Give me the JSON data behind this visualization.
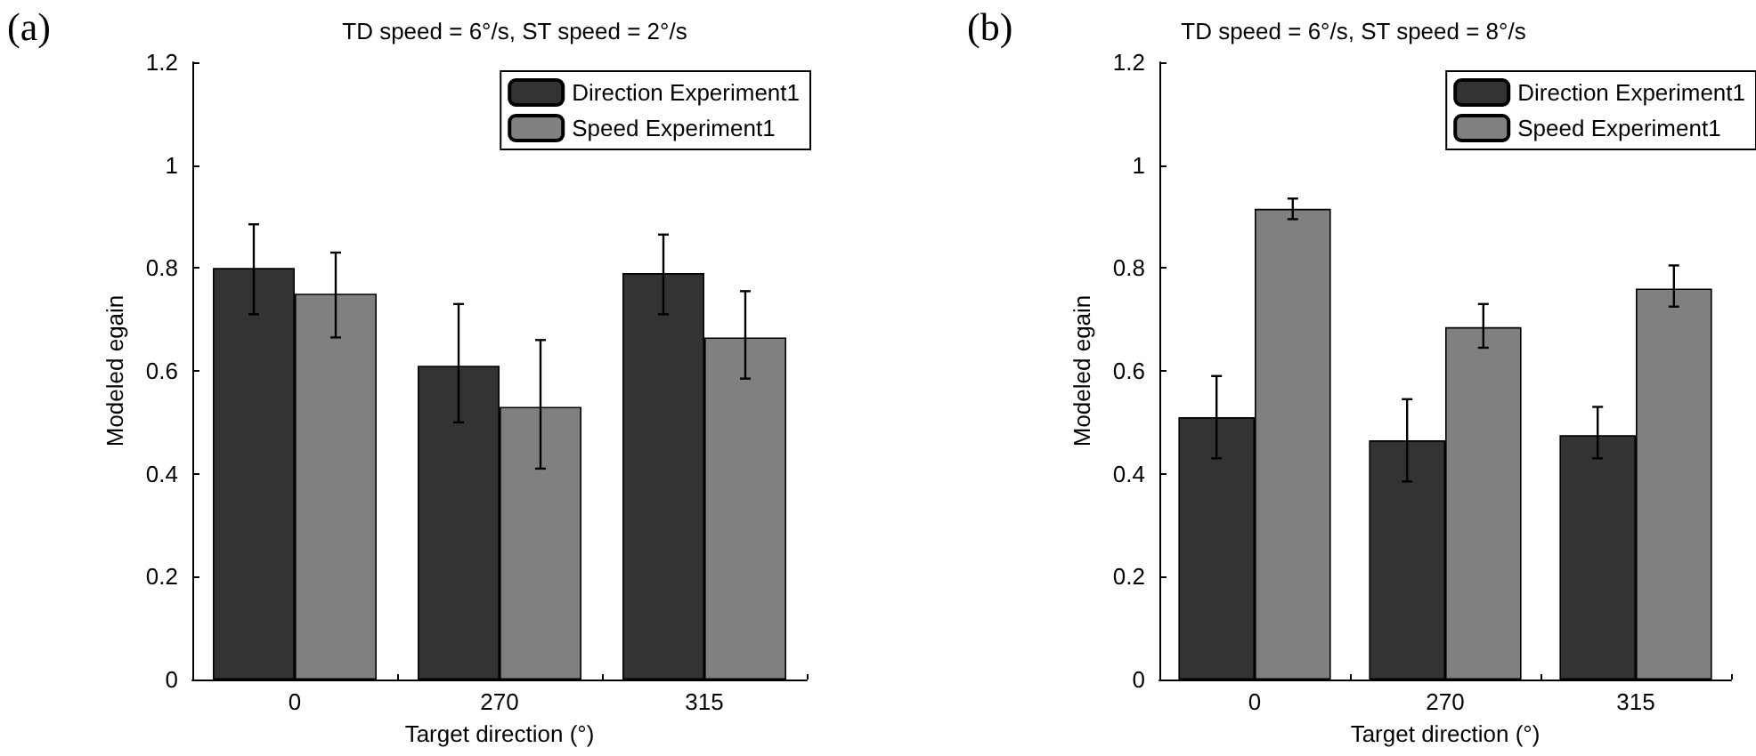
{
  "chart_data": [
    {
      "type": "bar",
      "title": "TD speed = 6°/s, ST speed = 2°/s",
      "annotations": [
        "(a)"
      ],
      "xlabel": "Target direction (°)",
      "ylabel": "Modeled egain",
      "categories": [
        "0",
        "270",
        "315"
      ],
      "ylim": [
        0,
        1.2
      ],
      "yticks": [
        0,
        0.2,
        0.4,
        0.6,
        0.8,
        1,
        1.2
      ],
      "grid": false,
      "legend": "top right",
      "series": [
        {
          "name": "Direction Experiment1",
          "color": "#333333",
          "values": [
            0.8,
            0.61,
            0.79
          ],
          "errors": [
            [
              0.71,
              0.885
            ],
            [
              0.5,
              0.73
            ],
            [
              0.71,
              0.865
            ]
          ]
        },
        {
          "name": "Speed Experiment1",
          "color": "#808080",
          "values": [
            0.75,
            0.53,
            0.665
          ],
          "errors": [
            [
              0.665,
              0.83
            ],
            [
              0.41,
              0.66
            ],
            [
              0.585,
              0.755
            ]
          ]
        }
      ]
    },
    {
      "type": "bar",
      "title": "TD speed = 6°/s, ST speed = 8°/s",
      "annotations": [
        "(b)"
      ],
      "xlabel": "Target direction (°)",
      "ylabel": "Modeled egain",
      "categories": [
        "0",
        "270",
        "315"
      ],
      "ylim": [
        0,
        1.2
      ],
      "yticks": [
        0,
        0.2,
        0.4,
        0.6,
        0.8,
        1,
        1.2
      ],
      "grid": false,
      "legend": "top right",
      "series": [
        {
          "name": "Direction Experiment1",
          "color": "#333333",
          "values": [
            0.51,
            0.465,
            0.475
          ],
          "errors": [
            [
              0.43,
              0.59
            ],
            [
              0.385,
              0.545
            ],
            [
              0.43,
              0.53
            ]
          ]
        },
        {
          "name": "Speed Experiment1",
          "color": "#808080",
          "values": [
            0.915,
            0.685,
            0.76
          ],
          "errors": [
            [
              0.895,
              0.935
            ],
            [
              0.645,
              0.73
            ],
            [
              0.725,
              0.805
            ]
          ]
        }
      ]
    }
  ]
}
